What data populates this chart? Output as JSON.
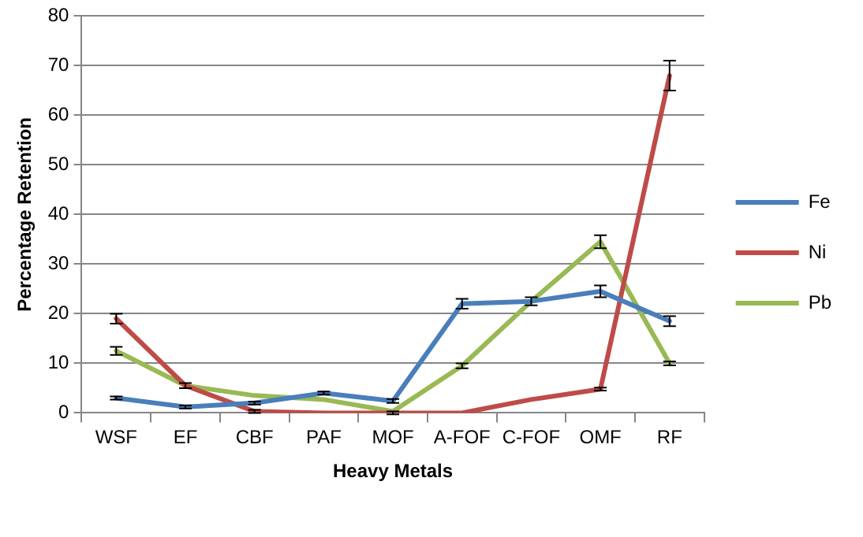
{
  "chart_data": {
    "type": "line",
    "xlabel": "Heavy Metals",
    "ylabel": "Percentage Retention",
    "categories": [
      "WSF",
      "EF",
      "CBF",
      "PAF",
      "MOF",
      "A-FOF",
      "C-FOF",
      "OMF",
      "RF"
    ],
    "series": [
      {
        "name": "Fe",
        "color": "#4a7ebb",
        "values": [
          3,
          1.2,
          2,
          4,
          2.4,
          22,
          22.5,
          24.5,
          18.5
        ],
        "errors": [
          0.3,
          0.3,
          0.3,
          0.3,
          0.4,
          1,
          0.8,
          1.2,
          1
        ]
      },
      {
        "name": "Ni",
        "color": "#be4b48",
        "values": [
          19,
          5.5,
          0.3,
          0,
          0,
          0,
          2.7,
          4.8,
          68
        ],
        "errors": [
          1,
          0.5,
          0.3,
          null,
          0.3,
          null,
          null,
          0.3,
          3
        ]
      },
      {
        "name": "Pb",
        "color": "#98b954",
        "values": [
          12.5,
          5.5,
          3.5,
          2.7,
          0.3,
          9.5,
          22.5,
          34.5,
          10
        ],
        "errors": [
          0.8,
          null,
          null,
          null,
          null,
          0.5,
          null,
          1.3,
          0.4
        ]
      }
    ],
    "ylim": [
      0,
      80
    ],
    "yticks": [
      0,
      10,
      20,
      30,
      40,
      50,
      60,
      70,
      80
    ],
    "grid": "y",
    "legend": "right",
    "marker": "none",
    "line_style": "solid"
  }
}
